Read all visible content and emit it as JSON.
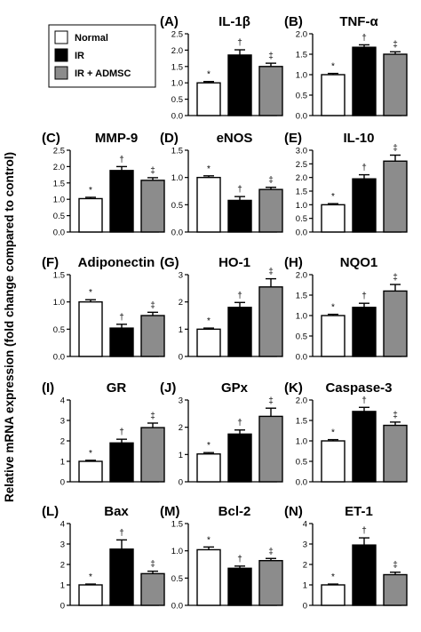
{
  "y_axis_title": "Relative mRNA expression (fold change compared to control)",
  "legend": {
    "entries": [
      {
        "label": "Normal",
        "color": "#ffffff"
      },
      {
        "label": "IR",
        "color": "#000000"
      },
      {
        "label": "IR + ADMSC",
        "color": "#8c8c8c"
      }
    ]
  },
  "group_colors": [
    "#ffffff",
    "#000000",
    "#8c8c8c"
  ],
  "markers": [
    "*",
    "†",
    "‡"
  ],
  "chart_data": [
    {
      "type": "bar",
      "panel": "(A)",
      "title": "IL-1β",
      "ylim": [
        0,
        2.5
      ],
      "ticks": [
        "0.0",
        "0.5",
        "1.0",
        "1.5",
        "2.0",
        "2.5"
      ],
      "categories": [
        "Normal",
        "IR",
        "IR + ADMSC"
      ],
      "values": [
        1.0,
        1.85,
        1.5
      ],
      "errors": [
        0.04,
        0.16,
        0.1
      ],
      "markers": [
        "*",
        "†",
        "‡"
      ]
    },
    {
      "type": "bar",
      "panel": "(B)",
      "title": "TNF-α",
      "ylim": [
        0,
        2.0
      ],
      "ticks": [
        "0.0",
        "0.5",
        "1.0",
        "1.5",
        "2.0"
      ],
      "categories": [
        "Normal",
        "IR",
        "IR + ADMSC"
      ],
      "values": [
        1.0,
        1.67,
        1.5
      ],
      "errors": [
        0.03,
        0.06,
        0.06
      ],
      "markers": [
        "*",
        "†",
        "‡"
      ]
    },
    {
      "type": "bar",
      "panel": "(C)",
      "title": "MMP-9",
      "ylim": [
        0,
        2.5
      ],
      "ticks": [
        "0.0",
        "0.5",
        "1.0",
        "1.5",
        "2.0",
        "2.5"
      ],
      "categories": [
        "Normal",
        "IR",
        "IR + ADMSC"
      ],
      "values": [
        1.02,
        1.88,
        1.58
      ],
      "errors": [
        0.04,
        0.12,
        0.08
      ],
      "markers": [
        "*",
        "†",
        "‡"
      ]
    },
    {
      "type": "bar",
      "panel": "(D)",
      "title": "eNOS",
      "ylim": [
        0,
        1.5
      ],
      "ticks": [
        "0.0",
        "0.5",
        "1.0",
        "1.5"
      ],
      "categories": [
        "Normal",
        "IR",
        "IR + ADMSC"
      ],
      "values": [
        1.0,
        0.58,
        0.78
      ],
      "errors": [
        0.03,
        0.07,
        0.04
      ],
      "markers": [
        "*",
        "†",
        "‡"
      ]
    },
    {
      "type": "bar",
      "panel": "(E)",
      "title": "IL-10",
      "ylim": [
        0,
        3.0
      ],
      "ticks": [
        "0.0",
        "0.5",
        "1.0",
        "1.5",
        "2.0",
        "2.5",
        "3.0"
      ],
      "categories": [
        "Normal",
        "IR",
        "IR + ADMSC"
      ],
      "values": [
        1.0,
        1.95,
        2.6
      ],
      "errors": [
        0.04,
        0.15,
        0.22
      ],
      "markers": [
        "*",
        "†",
        "‡"
      ]
    },
    {
      "type": "bar",
      "panel": "(F)",
      "title": "Adiponectin",
      "ylim": [
        0,
        1.5
      ],
      "ticks": [
        "0.0",
        "0.5",
        "1.0",
        "1.5"
      ],
      "categories": [
        "Normal",
        "IR",
        "IR + ADMSC"
      ],
      "values": [
        1.0,
        0.52,
        0.75
      ],
      "errors": [
        0.04,
        0.07,
        0.06
      ],
      "markers": [
        "*",
        "†",
        "‡"
      ]
    },
    {
      "type": "bar",
      "panel": "(G)",
      "title": "HO-1",
      "ylim": [
        0,
        3
      ],
      "ticks": [
        "0",
        "1",
        "2",
        "3"
      ],
      "categories": [
        "Normal",
        "IR",
        "IR + ADMSC"
      ],
      "values": [
        1.0,
        1.8,
        2.55
      ],
      "errors": [
        0.04,
        0.18,
        0.3
      ],
      "markers": [
        "*",
        "†",
        "‡"
      ]
    },
    {
      "type": "bar",
      "panel": "(H)",
      "title": "NQO1",
      "ylim": [
        0,
        2.0
      ],
      "ticks": [
        "0.0",
        "0.5",
        "1.0",
        "1.5",
        "2.0"
      ],
      "categories": [
        "Normal",
        "IR",
        "IR + ADMSC"
      ],
      "values": [
        1.0,
        1.2,
        1.6
      ],
      "errors": [
        0.03,
        0.1,
        0.16
      ],
      "markers": [
        "*",
        "†",
        "‡"
      ]
    },
    {
      "type": "bar",
      "panel": "(I)",
      "title": "GR",
      "ylim": [
        0,
        4
      ],
      "ticks": [
        "0",
        "1",
        "2",
        "3",
        "4"
      ],
      "categories": [
        "Normal",
        "IR",
        "IR + ADMSC"
      ],
      "values": [
        1.0,
        1.9,
        2.65
      ],
      "errors": [
        0.05,
        0.18,
        0.22
      ],
      "markers": [
        "*",
        "†",
        "‡"
      ]
    },
    {
      "type": "bar",
      "panel": "(J)",
      "title": "GPx",
      "ylim": [
        0,
        3
      ],
      "ticks": [
        "0",
        "1",
        "2",
        "3"
      ],
      "categories": [
        "Normal",
        "IR",
        "IR + ADMSC"
      ],
      "values": [
        1.02,
        1.75,
        2.4
      ],
      "errors": [
        0.05,
        0.15,
        0.3
      ],
      "markers": [
        "*",
        "†",
        "‡"
      ]
    },
    {
      "type": "bar",
      "panel": "(K)",
      "title": "Caspase-3",
      "ylim": [
        0,
        2.0
      ],
      "ticks": [
        "0.0",
        "0.5",
        "1.0",
        "1.5",
        "2.0"
      ],
      "categories": [
        "Normal",
        "IR",
        "IR + ADMSC"
      ],
      "values": [
        1.0,
        1.72,
        1.38
      ],
      "errors": [
        0.03,
        0.1,
        0.08
      ],
      "markers": [
        "*",
        "†",
        "‡"
      ]
    },
    {
      "type": "bar",
      "panel": "(L)",
      "title": "Bax",
      "ylim": [
        0,
        4
      ],
      "ticks": [
        "0",
        "1",
        "2",
        "3",
        "4"
      ],
      "categories": [
        "Normal",
        "IR",
        "IR + ADMSC"
      ],
      "values": [
        1.0,
        2.75,
        1.55
      ],
      "errors": [
        0.04,
        0.45,
        0.12
      ],
      "markers": [
        "*",
        "†",
        "‡"
      ]
    },
    {
      "type": "bar",
      "panel": "(M)",
      "title": "Bcl-2",
      "ylim": [
        0,
        1.5
      ],
      "ticks": [
        "0.0",
        "0.5",
        "1.0",
        "1.5"
      ],
      "categories": [
        "Normal",
        "IR",
        "IR + ADMSC"
      ],
      "values": [
        1.02,
        0.68,
        0.82
      ],
      "errors": [
        0.05,
        0.04,
        0.04
      ],
      "markers": [
        "*",
        "†",
        "‡"
      ]
    },
    {
      "type": "bar",
      "panel": "(N)",
      "title": "ET-1",
      "ylim": [
        0,
        4
      ],
      "ticks": [
        "0",
        "1",
        "2",
        "3",
        "4"
      ],
      "categories": [
        "Normal",
        "IR",
        "IR + ADMSC"
      ],
      "values": [
        1.0,
        2.95,
        1.5
      ],
      "errors": [
        0.04,
        0.35,
        0.12
      ],
      "markers": [
        "*",
        "†",
        "‡"
      ]
    }
  ]
}
